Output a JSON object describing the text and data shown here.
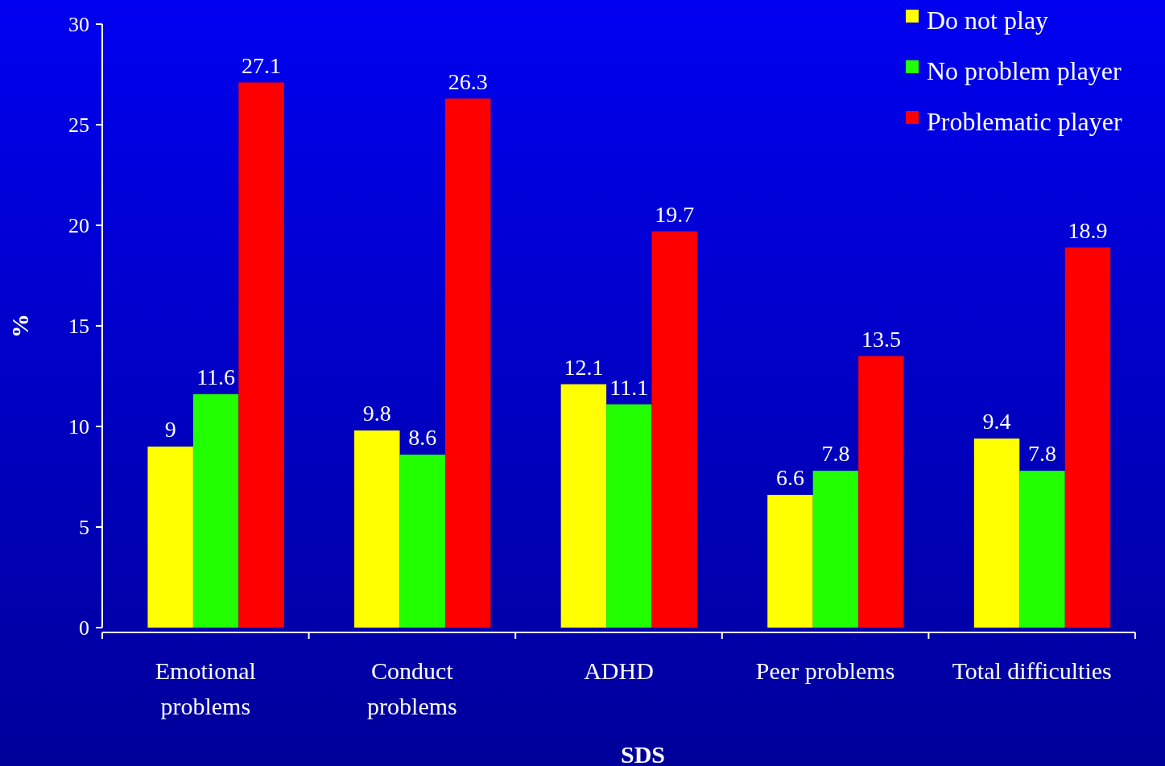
{
  "chart_data": {
    "type": "bar",
    "xlabel": "SDS",
    "ylabel": "%",
    "categories": [
      "Emotional\nproblems",
      "Conduct\nproblems",
      "ADHD",
      "Peer problems",
      "Total difficulties"
    ],
    "series": [
      {
        "name": "Do not play",
        "color": "#ffff00",
        "values": [
          9,
          9.8,
          12.1,
          6.6,
          9.4
        ]
      },
      {
        "name": "No problem player",
        "color": "#22ff00",
        "values": [
          11.6,
          8.6,
          11.1,
          7.8,
          7.8
        ]
      },
      {
        "name": "Problematic player",
        "color": "#ff0000",
        "values": [
          27.1,
          26.3,
          19.7,
          13.5,
          18.9
        ]
      }
    ],
    "ylim": [
      0,
      30
    ],
    "yticks": [
      0,
      5,
      10,
      15,
      20,
      25,
      30
    ],
    "data_labels": true,
    "legend": "top right",
    "grid": false
  }
}
